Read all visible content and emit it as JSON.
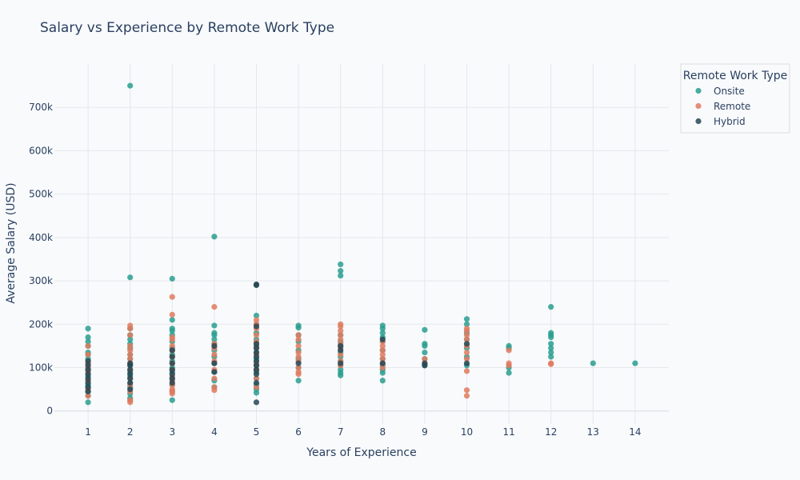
{
  "chart_data": {
    "type": "scatter",
    "title": "Salary vs Experience by Remote Work Type",
    "xlabel": "Years of Experience",
    "ylabel": "Average Salary (USD)",
    "xlim": [
      0.2,
      14.8
    ],
    "ylim": [
      -30000,
      800000
    ],
    "x_ticks": [
      1,
      2,
      3,
      4,
      5,
      6,
      7,
      8,
      9,
      10,
      11,
      12,
      13,
      14
    ],
    "y_ticks": [
      0,
      100000,
      200000,
      300000,
      400000,
      500000,
      600000,
      700000
    ],
    "y_tick_labels": [
      "0",
      "100k",
      "200k",
      "300k",
      "400k",
      "500k",
      "600k",
      "700k"
    ],
    "grid": true,
    "legend": {
      "title": "Remote Work Type",
      "position": "top-right"
    },
    "series": [
      {
        "name": "Onsite",
        "color": "#2a9d8f",
        "points": [
          [
            1,
            20000
          ],
          [
            1,
            35000
          ],
          [
            1,
            45000
          ],
          [
            1,
            55000
          ],
          [
            1,
            60000
          ],
          [
            1,
            70000
          ],
          [
            1,
            80000
          ],
          [
            1,
            95000
          ],
          [
            1,
            110000
          ],
          [
            1,
            120000
          ],
          [
            1,
            130000
          ],
          [
            1,
            135000
          ],
          [
            1,
            150000
          ],
          [
            1,
            160000
          ],
          [
            1,
            170000
          ],
          [
            1,
            190000
          ],
          [
            2,
            25000
          ],
          [
            2,
            30000
          ],
          [
            2,
            40000
          ],
          [
            2,
            55000
          ],
          [
            2,
            65000
          ],
          [
            2,
            80000
          ],
          [
            2,
            90000
          ],
          [
            2,
            105000
          ],
          [
            2,
            120000
          ],
          [
            2,
            130000
          ],
          [
            2,
            145000
          ],
          [
            2,
            155000
          ],
          [
            2,
            165000
          ],
          [
            2,
            175000
          ],
          [
            2,
            190000
          ],
          [
            2,
            308000
          ],
          [
            2,
            750000
          ],
          [
            3,
            25000
          ],
          [
            3,
            45000
          ],
          [
            3,
            60000
          ],
          [
            3,
            75000
          ],
          [
            3,
            90000
          ],
          [
            3,
            100000
          ],
          [
            3,
            115000
          ],
          [
            3,
            130000
          ],
          [
            3,
            145000
          ],
          [
            3,
            160000
          ],
          [
            3,
            175000
          ],
          [
            3,
            185000
          ],
          [
            3,
            190000
          ],
          [
            3,
            210000
          ],
          [
            3,
            305000
          ],
          [
            4,
            55000
          ],
          [
            4,
            70000
          ],
          [
            4,
            90000
          ],
          [
            4,
            110000
          ],
          [
            4,
            125000
          ],
          [
            4,
            140000
          ],
          [
            4,
            155000
          ],
          [
            4,
            165000
          ],
          [
            4,
            175000
          ],
          [
            4,
            180000
          ],
          [
            4,
            197000
          ],
          [
            4,
            402000
          ],
          [
            5,
            42000
          ],
          [
            5,
            50000
          ],
          [
            5,
            60000
          ],
          [
            5,
            75000
          ],
          [
            5,
            90000
          ],
          [
            5,
            105000
          ],
          [
            5,
            120000
          ],
          [
            5,
            135000
          ],
          [
            5,
            150000
          ],
          [
            5,
            165000
          ],
          [
            5,
            180000
          ],
          [
            5,
            200000
          ],
          [
            5,
            220000
          ],
          [
            6,
            70000
          ],
          [
            6,
            100000
          ],
          [
            6,
            120000
          ],
          [
            6,
            140000
          ],
          [
            6,
            160000
          ],
          [
            6,
            175000
          ],
          [
            6,
            192000
          ],
          [
            6,
            197000
          ],
          [
            7,
            82000
          ],
          [
            7,
            88000
          ],
          [
            7,
            95000
          ],
          [
            7,
            105000
          ],
          [
            7,
            115000
          ],
          [
            7,
            125000
          ],
          [
            7,
            135000
          ],
          [
            7,
            150000
          ],
          [
            7,
            160000
          ],
          [
            7,
            175000
          ],
          [
            7,
            312000
          ],
          [
            7,
            323000
          ],
          [
            7,
            338000
          ],
          [
            8,
            70000
          ],
          [
            8,
            88000
          ],
          [
            8,
            95000
          ],
          [
            8,
            105000
          ],
          [
            8,
            120000
          ],
          [
            8,
            140000
          ],
          [
            8,
            160000
          ],
          [
            8,
            170000
          ],
          [
            8,
            180000
          ],
          [
            8,
            190000
          ],
          [
            8,
            197000
          ],
          [
            9,
            105000
          ],
          [
            9,
            120000
          ],
          [
            9,
            135000
          ],
          [
            9,
            150000
          ],
          [
            9,
            155000
          ],
          [
            9,
            187000
          ],
          [
            10,
            105000
          ],
          [
            10,
            125000
          ],
          [
            10,
            145000
          ],
          [
            10,
            165000
          ],
          [
            10,
            180000
          ],
          [
            10,
            200000
          ],
          [
            10,
            212000
          ],
          [
            11,
            88000
          ],
          [
            11,
            100000
          ],
          [
            11,
            145000
          ],
          [
            11,
            150000
          ],
          [
            12,
            125000
          ],
          [
            12,
            135000
          ],
          [
            12,
            145000
          ],
          [
            12,
            155000
          ],
          [
            12,
            170000
          ],
          [
            12,
            175000
          ],
          [
            12,
            180000
          ],
          [
            12,
            240000
          ],
          [
            13,
            110000
          ],
          [
            14,
            110000
          ]
        ]
      },
      {
        "name": "Remote",
        "color": "#e07a5f",
        "points": [
          [
            1,
            35000
          ],
          [
            1,
            50000
          ],
          [
            1,
            70000
          ],
          [
            1,
            90000
          ],
          [
            1,
            100000
          ],
          [
            1,
            110000
          ],
          [
            1,
            130000
          ],
          [
            1,
            150000
          ],
          [
            2,
            20000
          ],
          [
            2,
            25000
          ],
          [
            2,
            45000
          ],
          [
            2,
            60000
          ],
          [
            2,
            75000
          ],
          [
            2,
            95000
          ],
          [
            2,
            110000
          ],
          [
            2,
            120000
          ],
          [
            2,
            130000
          ],
          [
            2,
            140000
          ],
          [
            2,
            150000
          ],
          [
            2,
            175000
          ],
          [
            2,
            190000
          ],
          [
            2,
            197000
          ],
          [
            3,
            40000
          ],
          [
            3,
            45000
          ],
          [
            3,
            50000
          ],
          [
            3,
            60000
          ],
          [
            3,
            70000
          ],
          [
            3,
            80000
          ],
          [
            3,
            95000
          ],
          [
            3,
            110000
          ],
          [
            3,
            125000
          ],
          [
            3,
            140000
          ],
          [
            3,
            150000
          ],
          [
            3,
            165000
          ],
          [
            3,
            170000
          ],
          [
            3,
            222000
          ],
          [
            3,
            263000
          ],
          [
            4,
            48000
          ],
          [
            4,
            55000
          ],
          [
            4,
            75000
          ],
          [
            4,
            95000
          ],
          [
            4,
            115000
          ],
          [
            4,
            130000
          ],
          [
            4,
            145000
          ],
          [
            4,
            155000
          ],
          [
            4,
            240000
          ],
          [
            5,
            55000
          ],
          [
            5,
            75000
          ],
          [
            5,
            95000
          ],
          [
            5,
            110000
          ],
          [
            5,
            130000
          ],
          [
            5,
            145000
          ],
          [
            5,
            160000
          ],
          [
            5,
            175000
          ],
          [
            5,
            190000
          ],
          [
            5,
            200000
          ],
          [
            5,
            210000
          ],
          [
            6,
            85000
          ],
          [
            6,
            90000
          ],
          [
            6,
            100000
          ],
          [
            6,
            115000
          ],
          [
            6,
            125000
          ],
          [
            6,
            135000
          ],
          [
            6,
            150000
          ],
          [
            6,
            165000
          ],
          [
            6,
            175000
          ],
          [
            7,
            105000
          ],
          [
            7,
            115000
          ],
          [
            7,
            130000
          ],
          [
            7,
            145000
          ],
          [
            7,
            155000
          ],
          [
            7,
            165000
          ],
          [
            7,
            175000
          ],
          [
            7,
            185000
          ],
          [
            7,
            195000
          ],
          [
            7,
            200000
          ],
          [
            8,
            100000
          ],
          [
            8,
            110000
          ],
          [
            8,
            120000
          ],
          [
            8,
            130000
          ],
          [
            8,
            140000
          ],
          [
            8,
            150000
          ],
          [
            8,
            160000
          ],
          [
            9,
            110000
          ],
          [
            9,
            120000
          ],
          [
            10,
            35000
          ],
          [
            10,
            48000
          ],
          [
            10,
            92000
          ],
          [
            10,
            120000
          ],
          [
            10,
            135000
          ],
          [
            10,
            150000
          ],
          [
            10,
            165000
          ],
          [
            10,
            175000
          ],
          [
            10,
            185000
          ],
          [
            10,
            190000
          ],
          [
            11,
            105000
          ],
          [
            11,
            110000
          ],
          [
            11,
            140000
          ],
          [
            12,
            108000
          ],
          [
            12,
            110000
          ]
        ]
      },
      {
        "name": "Hybrid",
        "color": "#264653",
        "points": [
          [
            1,
            45000
          ],
          [
            1,
            55000
          ],
          [
            1,
            65000
          ],
          [
            1,
            75000
          ],
          [
            1,
            85000
          ],
          [
            1,
            95000
          ],
          [
            1,
            105000
          ],
          [
            1,
            115000
          ],
          [
            2,
            50000
          ],
          [
            2,
            65000
          ],
          [
            2,
            75000
          ],
          [
            2,
            85000
          ],
          [
            2,
            95000
          ],
          [
            2,
            105000
          ],
          [
            2,
            110000
          ],
          [
            3,
            65000
          ],
          [
            3,
            75000
          ],
          [
            3,
            85000
          ],
          [
            3,
            95000
          ],
          [
            3,
            110000
          ],
          [
            3,
            125000
          ],
          [
            3,
            140000
          ],
          [
            4,
            90000
          ],
          [
            4,
            110000
          ],
          [
            4,
            150000
          ],
          [
            5,
            20000
          ],
          [
            5,
            65000
          ],
          [
            5,
            85000
          ],
          [
            5,
            95000
          ],
          [
            5,
            105000
          ],
          [
            5,
            115000
          ],
          [
            5,
            125000
          ],
          [
            5,
            135000
          ],
          [
            5,
            145000
          ],
          [
            5,
            155000
          ],
          [
            5,
            195000
          ],
          [
            5,
            290000
          ],
          [
            5,
            292000
          ],
          [
            6,
            110000
          ],
          [
            7,
            110000
          ],
          [
            7,
            140000
          ],
          [
            7,
            150000
          ],
          [
            8,
            110000
          ],
          [
            8,
            165000
          ],
          [
            9,
            105000
          ],
          [
            9,
            110000
          ],
          [
            10,
            110000
          ],
          [
            10,
            155000
          ]
        ]
      }
    ]
  }
}
